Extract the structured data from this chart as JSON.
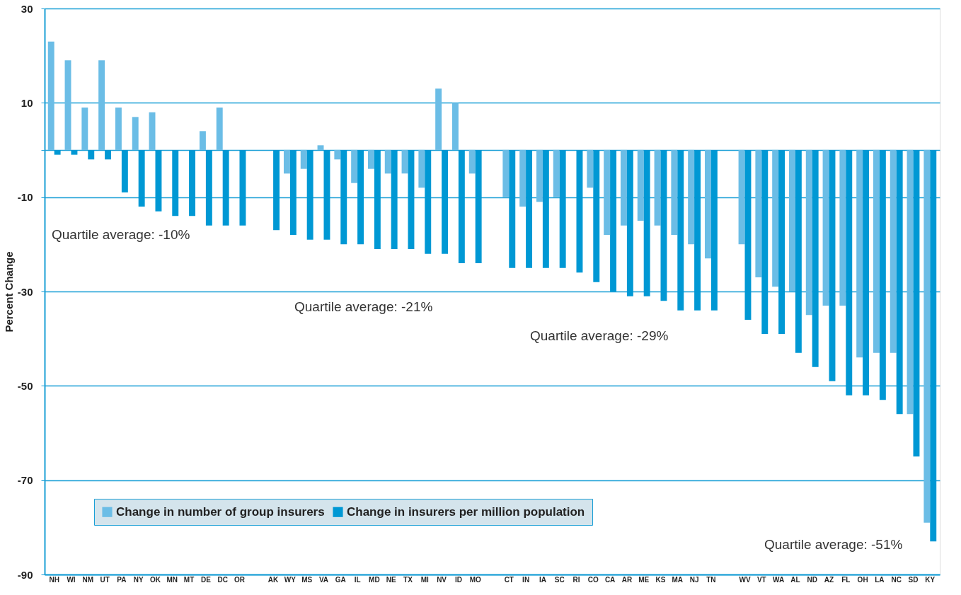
{
  "chart_data": {
    "type": "bar",
    "ylabel": "Percent Change",
    "categories": [
      "NH",
      "WI",
      "NM",
      "UT",
      "PA",
      "NY",
      "OK",
      "MN",
      "MT",
      "DE",
      "DC",
      "OR",
      null,
      "AK",
      "WY",
      "MS",
      "VA",
      "GA",
      "IL",
      "MD",
      "NE",
      "TX",
      "MI",
      "NV",
      "ID",
      "MO",
      null,
      "CT",
      "IN",
      "IA",
      "SC",
      "RI",
      "CO",
      "CA",
      "AR",
      "ME",
      "KS",
      "MA",
      "NJ",
      "TN",
      null,
      "WV",
      "VT",
      "WA",
      "AL",
      "ND",
      "AZ",
      "FL",
      "OH",
      "LA",
      "NC",
      "SD",
      "KY"
    ],
    "series": [
      {
        "name": "Change in number of group insurers",
        "color": "#6bbde6",
        "values": [
          23,
          19,
          9,
          19,
          9,
          7,
          8,
          null,
          null,
          4,
          9,
          null,
          null,
          null,
          -5,
          -4,
          1,
          -2,
          -7,
          -4,
          -5,
          -5,
          -8,
          13,
          10,
          -5,
          null,
          -10,
          -12,
          -11,
          -10,
          null,
          -8,
          -18,
          -16,
          -15,
          -16,
          -18,
          -20,
          -23,
          null,
          -20,
          -27,
          -29,
          -30,
          -35,
          -33,
          -33,
          -44,
          -43,
          -43,
          -56,
          -79
        ]
      },
      {
        "name": "Change in insurers per million population",
        "color": "#0098d4",
        "values": [
          -1,
          -1,
          -2,
          -2,
          -9,
          -12,
          -13,
          -14,
          -14,
          -16,
          -16,
          -16,
          null,
          -17,
          -18,
          -19,
          -19,
          -20,
          -20,
          -21,
          -21,
          -21,
          -22,
          -22,
          -24,
          -24,
          null,
          -25,
          -25,
          -25,
          -25,
          -26,
          -28,
          -30,
          -31,
          -31,
          -32,
          -34,
          -34,
          -34,
          null,
          -36,
          -39,
          -39,
          -43,
          -46,
          -49,
          -52,
          -52,
          -53,
          -56,
          -65,
          -83
        ]
      }
    ],
    "ylim": [
      -90,
      30
    ],
    "yticks": [
      30,
      10,
      {
        "value": 0,
        "label": null
      },
      -10,
      -30,
      -50,
      -70,
      -90
    ],
    "grid": "y",
    "legend": "bottom left",
    "annotations": [
      "Quartile average: -10%",
      "Quartile average: -21%",
      "Quartile average: -29%",
      "Quartile average: -51%"
    ]
  }
}
